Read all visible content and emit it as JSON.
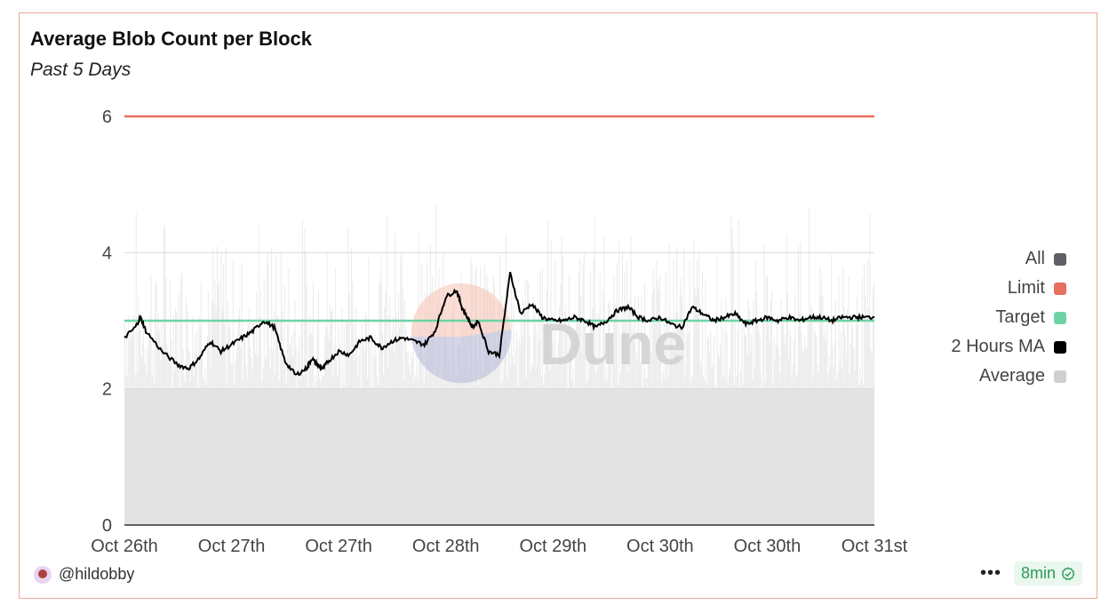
{
  "card": {
    "title": "Average Blob Count per Block",
    "subtitle": "Past 5 Days",
    "author": "@hildobby",
    "age_badge": "8min",
    "more_icon": "more-horizontal-icon",
    "check_icon": "check-circle-icon"
  },
  "watermark": "Dune",
  "colors": {
    "all": "#5f5f66",
    "limit": "#e8705f",
    "target": "#6fd3a6",
    "ma": "#000000",
    "average": "#cfcfcf"
  },
  "chart_data": {
    "type": "line",
    "title": "Average Blob Count per Block",
    "subtitle": "Past 5 Days",
    "ylim": [
      0,
      6
    ],
    "y_ticks": [
      0,
      2,
      4,
      6
    ],
    "x_tick_labels": [
      "Oct 26th",
      "Oct 27th",
      "Oct 27th",
      "Oct 28th",
      "Oct 29th",
      "Oct 30th",
      "Oct 30th",
      "Oct 31st"
    ],
    "grid": true,
    "legend_position": "right",
    "legend": [
      "All",
      "Limit",
      "Target",
      "2 Hours MA",
      "Average"
    ],
    "series": [
      {
        "name": "Limit",
        "constant": 6
      },
      {
        "name": "Target",
        "constant": 3
      },
      {
        "name": "2 Hours MA",
        "x": [
          0,
          0.1,
          0.15,
          0.2,
          0.35,
          0.5,
          0.6,
          0.7,
          0.8,
          0.9,
          1.0,
          1.1,
          1.2,
          1.3,
          1.4,
          1.5,
          1.6,
          1.7,
          1.75,
          1.8,
          1.85,
          1.9,
          2.0,
          2.1,
          2.2,
          2.3,
          2.4,
          2.5,
          2.6,
          2.7,
          2.8,
          2.9,
          3.0,
          3.1,
          3.15,
          3.2,
          3.25,
          3.3,
          3.4,
          3.5,
          3.6,
          3.7,
          3.8,
          3.9,
          4.0,
          4.1,
          4.2,
          4.3,
          4.4,
          4.5,
          4.6,
          4.7,
          4.8,
          4.9,
          5.0,
          5.1,
          5.2,
          5.3,
          5.4,
          5.5,
          5.6,
          5.7,
          5.8,
          5.9,
          6.0,
          6.1,
          6.2,
          6.3,
          6.4,
          6.5,
          6.6,
          6.7,
          6.8,
          6.9,
          7.0
        ],
        "values": [
          2.75,
          2.9,
          3.05,
          2.85,
          2.55,
          2.35,
          2.3,
          2.45,
          2.7,
          2.55,
          2.65,
          2.75,
          2.85,
          3.0,
          2.9,
          2.4,
          2.2,
          2.3,
          2.45,
          2.35,
          2.3,
          2.4,
          2.55,
          2.5,
          2.7,
          2.75,
          2.6,
          2.7,
          2.75,
          2.7,
          2.65,
          2.85,
          3.35,
          3.45,
          3.2,
          3.05,
          2.9,
          3.0,
          2.55,
          2.5,
          3.7,
          3.1,
          3.25,
          3.05,
          3.0,
          3.0,
          3.05,
          3.0,
          2.9,
          3.0,
          3.15,
          3.2,
          3.05,
          3.0,
          3.05,
          2.95,
          2.9,
          3.2,
          3.1,
          3.0,
          3.05,
          3.1,
          2.95,
          3.0,
          3.05,
          3.0,
          3.05,
          3.0,
          3.05,
          3.05,
          3.0,
          3.05,
          3.05,
          3.05,
          3.05
        ]
      },
      {
        "name": "Average",
        "band": [
          2.0,
          4.8
        ]
      }
    ]
  }
}
